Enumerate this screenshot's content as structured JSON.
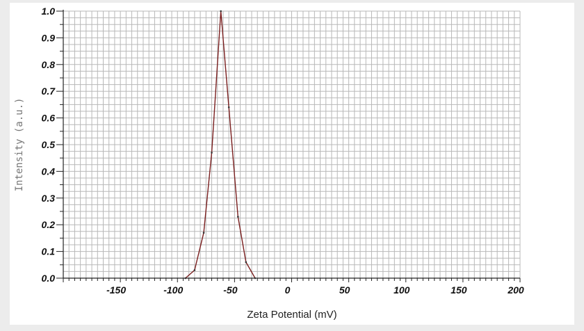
{
  "chart_data": {
    "type": "line",
    "xlabel": "Zeta Potential (mV)",
    "ylabel": "Intensity (a.u.)",
    "xlim": [
      -200,
      200
    ],
    "ylim": [
      0,
      1.0
    ],
    "x_ticks": [
      -150,
      -100,
      -50,
      0,
      50,
      100,
      150,
      200
    ],
    "x_tick_labels": [
      "-150",
      "-100",
      "-50",
      "0",
      "50",
      "100",
      "150",
      "200"
    ],
    "y_ticks": [
      0.0,
      0.1,
      0.2,
      0.3,
      0.4,
      0.5,
      0.6,
      0.7,
      0.8,
      0.9,
      1.0
    ],
    "y_tick_labels": [
      "0.0",
      "0.1",
      "0.2",
      "0.3",
      "0.4",
      "0.5",
      "0.6",
      "0.7",
      "0.8",
      "0.9",
      "1.0"
    ],
    "grid": true,
    "line_color": "#7a1f1f",
    "grid_color": "#b8b8b8",
    "series": [
      {
        "x": [
          -93,
          -85,
          -77,
          -70,
          -62,
          -55,
          -47,
          -40,
          -32
        ],
        "y": [
          0.0,
          0.03,
          0.17,
          0.47,
          1.0,
          0.64,
          0.23,
          0.06,
          0.0
        ]
      }
    ]
  }
}
